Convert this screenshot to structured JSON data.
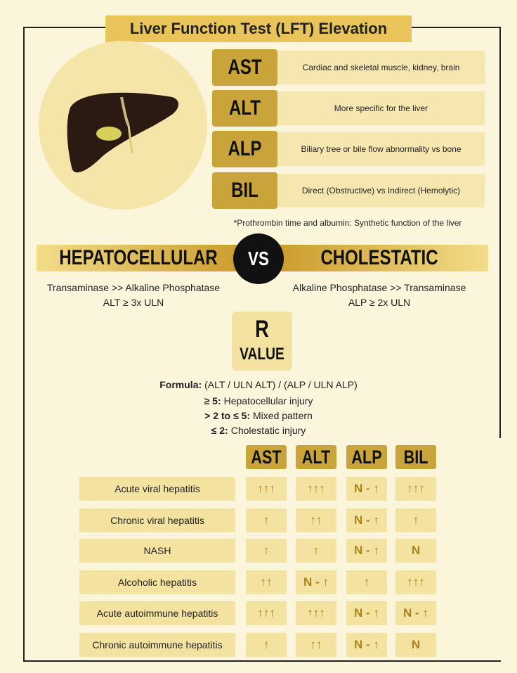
{
  "header": {
    "title": "Liver Function Test (LFT) Elevation"
  },
  "markers": [
    {
      "label": "AST",
      "description": "Cardiac and skeletal muscle, kidney, brain"
    },
    {
      "label": "ALT",
      "description": "More specific for the liver"
    },
    {
      "label": "ALP",
      "description": "Biliary tree or bile flow abnormality vs bone"
    },
    {
      "label": "BIL",
      "description": "Direct (Obstructive) vs Indirect (Hemolytic)"
    }
  ],
  "footnote": "*Prothrombin time and albumin: Synthetic function of the liver",
  "comparison": {
    "left": {
      "title": "HEPATOCELLULAR",
      "line1": "Transaminase >> Alkaline Phosphatase",
      "line2": "ALT ≥ 3x ULN"
    },
    "vs": "VS",
    "right": {
      "title": "CHOLESTATIC",
      "line1": "Alkaline Phosphatase >> Transaminase",
      "line2": "ALP ≥ 2x ULN"
    }
  },
  "r_value": {
    "title": "R",
    "subtitle": "VALUE",
    "formula_label": "Formula:",
    "formula": "(ALT / ULN ALT) / (ALP / ULN ALP)",
    "rules": [
      {
        "label": "≥ 5:",
        "text": "Hepatocellular injury"
      },
      {
        "label": "> 2 to ≤ 5:",
        "text": "Mixed pattern"
      },
      {
        "label": "≤ 2:",
        "text": "Cholestatic injury"
      }
    ]
  },
  "table": {
    "columns": [
      "AST",
      "ALT",
      "ALP",
      "BIL"
    ],
    "rows": [
      {
        "label": "Acute viral hepatitis",
        "cells": [
          "↑↑↑",
          "↑↑↑",
          "N - ↑",
          "↑↑↑"
        ]
      },
      {
        "label": "Chronic viral hepatitis",
        "cells": [
          "↑",
          "↑↑",
          "N - ↑",
          "↑"
        ]
      },
      {
        "label": "NASH",
        "cells": [
          "↑",
          "↑",
          "N - ↑",
          "N"
        ]
      },
      {
        "label": "Alcoholic hepatitis",
        "cells": [
          "↑↑",
          "N - ↑",
          "↑",
          "↑↑↑"
        ]
      },
      {
        "label": "Acute autoimmune hepatitis",
        "cells": [
          "↑↑↑",
          "↑↑↑",
          "N - ↑",
          "N - ↑"
        ]
      },
      {
        "label": "Chronic autoimmune hepatitis",
        "cells": [
          "↑",
          "↑↑",
          "N - ↑",
          "N"
        ]
      }
    ]
  }
}
